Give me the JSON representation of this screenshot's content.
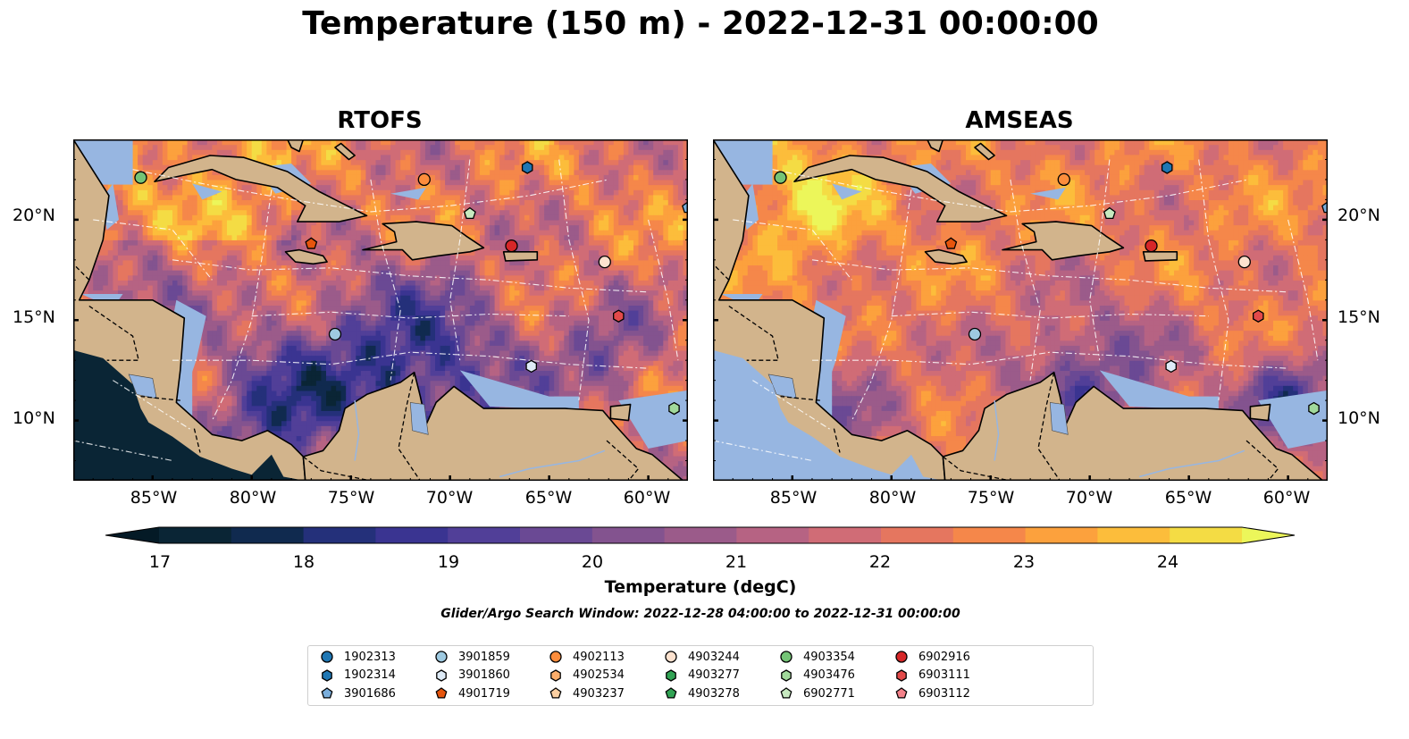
{
  "title": "Temperature (150 m) - 2022-12-31 00:00:00",
  "panels": [
    {
      "title": "RTOFS"
    },
    {
      "title": "AMSEAS"
    }
  ],
  "lat_labels": [
    "20°N",
    "15°N",
    "10°N"
  ],
  "lon_labels": [
    "85°W",
    "80°W",
    "75°W",
    "70°W",
    "65°W",
    "60°W"
  ],
  "colorbar": {
    "label": "Temperature (degC)",
    "ticks": [
      "17",
      "18",
      "19",
      "20",
      "21",
      "22",
      "23",
      "24"
    ],
    "colors": [
      "#0a2535",
      "#102a4f",
      "#24307a",
      "#3a3491",
      "#513f98",
      "#6a4994",
      "#83538f",
      "#9b5b8a",
      "#b66383",
      "#d06c76",
      "#e5765f",
      "#f5874a",
      "#fca13d",
      "#fcbd3b",
      "#f4dc44"
    ],
    "extend_low": "#041a26",
    "extend_high": "#ecf65a"
  },
  "search_window": "Glider/Argo Search Window: 2022-12-28 04:00:00 to 2022-12-31 00:00:00",
  "map_extent": {
    "lon": [
      -89,
      -58
    ],
    "lat": [
      7,
      24
    ]
  },
  "legend": [
    {
      "id": "1902313",
      "marker": "circle",
      "color": "#1f77b4"
    },
    {
      "id": "1902314",
      "marker": "hexagon",
      "color": "#1f77b4"
    },
    {
      "id": "3901686",
      "marker": "pentagon",
      "color": "#7aaedc"
    },
    {
      "id": "3901859",
      "marker": "circle",
      "color": "#9ecae1"
    },
    {
      "id": "3901860",
      "marker": "hexagon",
      "color": "#deebf7"
    },
    {
      "id": "4901719",
      "marker": "pentagon",
      "color": "#e6550d"
    },
    {
      "id": "4902113",
      "marker": "circle",
      "color": "#fd8d3c"
    },
    {
      "id": "4902534",
      "marker": "hexagon",
      "color": "#fdae6b"
    },
    {
      "id": "4903237",
      "marker": "pentagon",
      "color": "#fdd0a2"
    },
    {
      "id": "4903244",
      "marker": "circle",
      "color": "#fde2cf"
    },
    {
      "id": "4903277",
      "marker": "hexagon",
      "color": "#31a354"
    },
    {
      "id": "4903278",
      "marker": "pentagon",
      "color": "#31a354"
    },
    {
      "id": "4903354",
      "marker": "circle",
      "color": "#74c476"
    },
    {
      "id": "4903476",
      "marker": "hexagon",
      "color": "#a1d99b"
    },
    {
      "id": "6902771",
      "marker": "pentagon",
      "color": "#c7e9c0"
    },
    {
      "id": "6902916",
      "marker": "circle",
      "color": "#d62728"
    },
    {
      "id": "6903111",
      "marker": "hexagon",
      "color": "#e34a4a"
    },
    {
      "id": "6903112",
      "marker": "pentagon",
      "color": "#f4828a"
    }
  ],
  "floats": [
    {
      "id": "4903354",
      "lon": -85.6,
      "lat": 22.1
    },
    {
      "id": "4902113",
      "lon": -71.3,
      "lat": 22.0
    },
    {
      "id": "1902314",
      "lon": -66.1,
      "lat": 22.6
    },
    {
      "id": "6902771",
      "lon": -69.0,
      "lat": 20.3
    },
    {
      "id": "4901719",
      "lon": -77.0,
      "lat": 18.8
    },
    {
      "id": "6902916",
      "lon": -66.9,
      "lat": 18.7
    },
    {
      "id": "4903244",
      "lon": -62.2,
      "lat": 17.9
    },
    {
      "id": "6903111",
      "lon": -61.5,
      "lat": 15.2
    },
    {
      "id": "3901859",
      "lon": -75.8,
      "lat": 14.3
    },
    {
      "id": "3901860",
      "lon": -65.9,
      "lat": 12.7
    },
    {
      "id": "4903476",
      "lon": -58.7,
      "lat": 10.6
    },
    {
      "id": "3901686",
      "lon": -58.0,
      "lat": 20.6
    }
  ]
}
